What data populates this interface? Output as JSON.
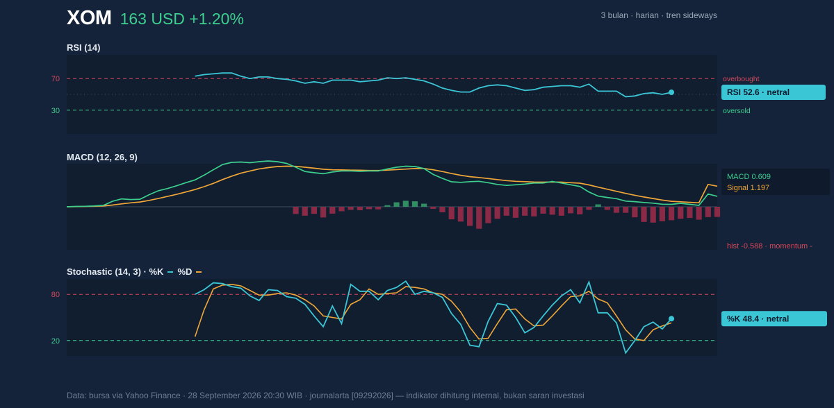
{
  "header": {
    "ticker": "XOM",
    "price_text": "163 USD +1.20%",
    "period": "3 bulan · harian · tren sideways"
  },
  "colors": {
    "background": "#15233a",
    "plot_bg": "#111e30",
    "rsi_line": "#3bc6d6",
    "macd_line": "#3ccf8e",
    "signal_line": "#f0a738",
    "hist_positive": "#2f8f63",
    "hist_negative": "#8a2a46",
    "overbought": "#d4475a",
    "oversold": "#3ccf8e",
    "k_line": "#3bc6d6",
    "d_line": "#f0a738"
  },
  "footer": "Data: bursa via Yahoo Finance · 28 September 2026 20:30 WIB · journalarta [09292026] — indikator dihitung internal, bukan saran investasi",
  "chart_data": [
    {
      "type": "line",
      "title": "RSI (14)",
      "ylim": [
        0,
        100
      ],
      "y_ticks": [
        "70",
        "30"
      ],
      "x_index_start": 14,
      "levels": {
        "overbought": 70,
        "oversold": 30,
        "midline": 50
      },
      "level_labels": {
        "overbought": "overbought",
        "oversold": "oversold"
      },
      "series": [
        {
          "values": [
            73,
            75,
            76,
            77,
            77,
            73,
            70,
            72,
            72,
            70,
            69,
            67,
            64,
            66,
            64,
            68,
            68,
            68,
            66,
            67,
            68,
            71,
            70,
            71,
            69,
            67,
            63,
            58,
            55,
            53,
            53,
            58,
            61,
            62,
            61,
            58,
            55,
            56,
            59,
            60,
            61,
            61,
            59,
            63,
            54,
            54,
            54,
            47,
            48,
            51,
            52,
            50,
            52.6
          ]
        }
      ],
      "last_label": "RSI 52.6 · netral"
    },
    {
      "type": "line",
      "title": "MACD (12, 26, 9)",
      "ylim": [
        -2.5,
        2.5
      ],
      "zero_line": true,
      "series": [
        {
          "name": "MACD",
          "values": [
            0,
            0.02,
            0.03,
            0.05,
            0.08,
            0.32,
            0.46,
            0.42,
            0.44,
            0.7,
            0.93,
            1.06,
            1.22,
            1.4,
            1.56,
            1.84,
            2.15,
            2.45,
            2.58,
            2.6,
            2.56,
            2.62,
            2.66,
            2.62,
            2.52,
            2.3,
            2.05,
            1.98,
            1.92,
            2.02,
            2.08,
            2.08,
            2.06,
            2.08,
            2.08,
            2.2,
            2.3,
            2.36,
            2.34,
            2.22,
            1.88,
            1.65,
            1.45,
            1.42,
            1.46,
            1.48,
            1.4,
            1.3,
            1.24,
            1.28,
            1.32,
            1.38,
            1.38,
            1.47,
            1.38,
            1.28,
            1.18,
            0.86,
            0.62,
            0.54,
            0.47,
            0.33,
            0.3,
            0.25,
            0.21,
            0.15,
            0.14,
            0.2,
            0.14,
            0.08,
            0.74,
            0.609
          ]
        },
        {
          "name": "Signal",
          "values": [
            0,
            0.01,
            0.02,
            0.03,
            0.05,
            0.1,
            0.17,
            0.23,
            0.28,
            0.37,
            0.48,
            0.6,
            0.72,
            0.86,
            1.0,
            1.17,
            1.36,
            1.58,
            1.78,
            1.95,
            2.08,
            2.2,
            2.28,
            2.34,
            2.36,
            2.35,
            2.3,
            2.24,
            2.18,
            2.15,
            2.14,
            2.13,
            2.12,
            2.11,
            2.11,
            2.13,
            2.16,
            2.19,
            2.22,
            2.22,
            2.15,
            2.05,
            1.93,
            1.83,
            1.75,
            1.7,
            1.64,
            1.58,
            1.52,
            1.48,
            1.46,
            1.44,
            1.43,
            1.44,
            1.43,
            1.4,
            1.37,
            1.27,
            1.14,
            1.02,
            0.9,
            0.78,
            0.67,
            0.57,
            0.48,
            0.39,
            0.32,
            0.29,
            0.26,
            0.23,
            1.3,
            1.197
          ]
        }
      ],
      "histogram": [
        0,
        0,
        0,
        0,
        0,
        0,
        0,
        0,
        0,
        0,
        0,
        0,
        0,
        0,
        0,
        0,
        0,
        0,
        0,
        0,
        0,
        0,
        0,
        0,
        0,
        -0.42,
        -0.52,
        -0.41,
        -0.62,
        -0.4,
        -0.26,
        -0.18,
        -0.2,
        -0.14,
        -0.15,
        0.09,
        0.26,
        0.35,
        0.32,
        0.18,
        -0.12,
        -0.32,
        -0.73,
        -0.86,
        -1.11,
        -1.28,
        -0.95,
        -0.7,
        -0.52,
        -0.64,
        -0.52,
        -0.56,
        -0.4,
        -0.46,
        -0.52,
        -0.38,
        -0.44,
        -0.18,
        0.14,
        -0.18,
        -0.35,
        -0.35,
        -0.61,
        -0.88,
        -0.92,
        -0.84,
        -0.78,
        -0.7,
        -0.65,
        -0.75,
        -0.6,
        -0.588
      ],
      "labels": {
        "macd": "MACD 0.609",
        "signal": "Signal 1.197",
        "hist": "hist -0.588 · momentum -"
      }
    },
    {
      "type": "line",
      "title": "Stochastic (14, 3) · %K",
      "legend_d": "%D",
      "ylim": [
        0,
        100
      ],
      "y_ticks": [
        "80",
        "20"
      ],
      "x_index_start": 14,
      "levels": {
        "overbought": 80,
        "oversold": 20
      },
      "series": [
        {
          "name": "%K",
          "values": [
            80,
            86,
            95,
            94,
            90,
            88,
            78,
            72,
            86,
            85,
            77,
            75,
            67,
            52,
            38,
            65,
            42,
            93,
            84,
            84,
            73,
            85,
            89,
            97,
            80,
            84,
            82,
            76,
            55,
            41,
            14,
            12,
            45,
            68,
            66,
            50,
            30,
            37,
            52,
            66,
            78,
            86,
            69,
            96,
            56,
            56,
            43,
            4,
            20,
            38,
            44,
            35,
            48.4
          ]
        },
        {
          "name": "%D",
          "values": [
            25,
            60,
            87,
            92,
            93,
            91,
            85,
            79,
            79,
            81,
            82,
            79,
            73,
            65,
            52,
            50,
            48,
            67,
            73,
            87,
            80,
            81,
            82,
            90,
            89,
            87,
            82,
            80,
            71,
            57,
            37,
            22,
            23,
            42,
            60,
            61,
            48,
            39,
            40,
            52,
            65,
            77,
            78,
            84,
            74,
            69,
            52,
            34,
            22,
            20,
            34,
            39,
            43
          ]
        }
      ],
      "last_label": "%K 48.4 · netral"
    }
  ]
}
